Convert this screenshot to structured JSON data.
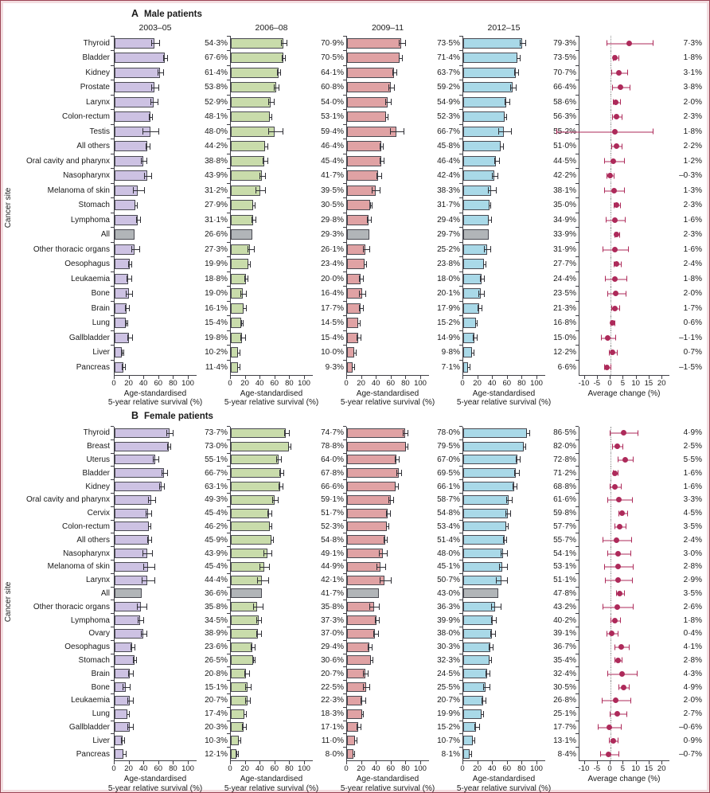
{
  "figure": {
    "ylabel": "Cancer site",
    "frame_outer_color": "#9c4455",
    "frame_inner_color": "#f3dde0",
    "colors": {
      "periods": [
        "#cdc2e3",
        "#c9dcab",
        "#e0a2a4",
        "#a9d9e8"
      ],
      "all_bar": "#b1b5b8",
      "bar_border": "#4a4a52",
      "error_bar": "#303036",
      "change_accent": "#ad2a5a",
      "zero_line": "#919191"
    },
    "survival_axis": {
      "min": 0,
      "max": 100,
      "ticks": [
        0,
        20,
        40,
        60,
        80,
        100
      ],
      "label_line1": "Age-standardised",
      "label_line2": "5-year relative survival (%)"
    },
    "change_axis": {
      "min": -10,
      "max": 20,
      "ticks": [
        -10,
        -5,
        0,
        5,
        10,
        15,
        20
      ],
      "label": "Average change (%)"
    }
  },
  "chart_data": [
    {
      "type": "bar",
      "panel_letter": "A",
      "title": "Male patients",
      "show_period_headers": true,
      "periods": [
        "2003–05",
        "2006–08",
        "2009–11",
        "2012–15"
      ],
      "categories": [
        "Thyroid",
        "Bladder",
        "Kidney",
        "Prostate",
        "Larynx",
        "Colon-rectum",
        "Testis",
        "All others",
        "Oral cavity and pharynx",
        "Nasopharynx",
        "Melanoma of skin",
        "Stomach",
        "Lymphoma",
        "All",
        "Other thoracic organs",
        "Oesophagus",
        "Leukaemia",
        "Bone",
        "Brain",
        "Lung",
        "Gallbladder",
        "Liver",
        "Pancreas"
      ],
      "all_index": 13,
      "series": [
        {
          "name": "2003–05",
          "values": [
            54.3,
            67.6,
            61.4,
            53.8,
            52.9,
            48.1,
            48.0,
            44.2,
            38.8,
            43.9,
            31.2,
            27.9,
            31.1,
            26.6,
            27.3,
            19.9,
            18.8,
            19.0,
            16.1,
            15.4,
            19.8,
            10.2,
            11.4
          ],
          "errors": [
            5,
            2,
            3,
            4,
            4,
            1.5,
            10,
            2,
            3,
            4,
            7,
            1,
            2.5,
            0,
            5,
            1.5,
            2.5,
            4,
            2.5,
            0.8,
            2.5,
            1,
            1.5
          ]
        },
        {
          "name": "2006–08",
          "values": [
            70.9,
            70.5,
            64.1,
            60.8,
            54.0,
            53.1,
            59.4,
            46.4,
            45.4,
            41.7,
            39.5,
            30.5,
            29.8,
            29.3,
            26.1,
            23.4,
            20.0,
            16.4,
            17.7,
            14.5,
            15.4,
            10.0,
            9.3
          ],
          "errors": [
            3,
            1.5,
            2,
            3,
            3,
            1,
            9,
            1.5,
            2.5,
            3.5,
            6,
            1,
            2,
            0,
            4,
            1,
            2,
            3.5,
            2,
            0.8,
            2.5,
            1,
            1
          ]
        },
        {
          "name": "2009–11",
          "values": [
            73.5,
            71.4,
            63.7,
            59.2,
            54.9,
            52.3,
            66.7,
            45.8,
            46.4,
            42.4,
            38.3,
            31.7,
            29.4,
            29.7,
            25.2,
            23.8,
            18.0,
            20.1,
            17.9,
            15.2,
            14.9,
            9.8,
            7.1
          ],
          "errors": [
            3.5,
            1.5,
            2,
            3,
            3,
            1,
            9,
            1.5,
            2.5,
            3,
            5,
            1,
            2,
            0,
            4,
            1,
            2,
            3.5,
            2,
            0.8,
            2.5,
            1,
            1
          ]
        },
        {
          "name": "2012–15",
          "values": [
            79.3,
            73.5,
            70.7,
            66.4,
            58.6,
            56.3,
            55.2,
            51.0,
            44.5,
            42.2,
            38.1,
            35.0,
            34.9,
            33.9,
            31.9,
            27.7,
            24.4,
            23.5,
            21.3,
            16.8,
            15.0,
            12.2,
            6.6
          ],
          "errors": [
            3,
            1.5,
            2,
            3,
            3,
            1,
            8,
            1.5,
            2.5,
            3,
            5,
            1,
            2,
            0,
            4,
            1,
            2,
            3,
            2,
            0.8,
            2,
            1,
            1
          ]
        }
      ],
      "change": {
        "label": "Average change (%)",
        "values": [
          7.3,
          1.8,
          3.1,
          3.8,
          2.0,
          2.3,
          1.8,
          2.2,
          1.2,
          -0.3,
          1.3,
          2.3,
          1.6,
          2.3,
          1.6,
          2.4,
          1.8,
          2.0,
          1.7,
          0.6,
          -1.1,
          0.7,
          -1.5
        ],
        "ci_lo": [
          -1.5,
          1.0,
          0.2,
          0.6,
          0.8,
          0.6,
          -21.0,
          0.4,
          -2.4,
          -1.6,
          -2.4,
          1.3,
          -1.9,
          1.5,
          -3.1,
          1.1,
          -2.1,
          -1.4,
          0.4,
          -0.1,
          -3.6,
          -0.6,
          -2.6
        ],
        "ci_hi": [
          16.0,
          2.6,
          6.0,
          7.0,
          3.2,
          4.0,
          16.0,
          4.0,
          4.8,
          1.0,
          5.0,
          3.3,
          5.1,
          3.1,
          6.3,
          3.7,
          5.7,
          5.4,
          3.0,
          1.3,
          1.4,
          2.0,
          -0.4
        ]
      }
    },
    {
      "type": "bar",
      "panel_letter": "B",
      "title": "Female patients",
      "show_period_headers": false,
      "periods": [
        "2003–05",
        "2006–08",
        "2009–11",
        "2012–15"
      ],
      "categories": [
        "Thyroid",
        "Breast",
        "Uterus",
        "Bladder",
        "Kidney",
        "Oral cavity and pharynx",
        "Cervix",
        "Colon-rectum",
        "All others",
        "Nasopharynx",
        "Melanoma of skin",
        "Larynx",
        "All",
        "Other thoracic organs",
        "Lymphoma",
        "Ovary",
        "Oesophagus",
        "Stomach",
        "Brain",
        "Bone",
        "Leukaemia",
        "Lung",
        "Gallbladder",
        "Liver",
        "Pancreas"
      ],
      "all_index": 12,
      "series": [
        {
          "name": "2003–05",
          "values": [
            73.7,
            73.0,
            55.1,
            66.7,
            63.1,
            49.3,
            45.4,
            46.2,
            45.9,
            43.9,
            45.4,
            44.4,
            36.6,
            35.8,
            34.5,
            38.9,
            23.6,
            26.5,
            20.8,
            15.1,
            20.7,
            17.4,
            20.3,
            10.3,
            12.1
          ],
          "errors": [
            4,
            1.5,
            3,
            3,
            2.5,
            4,
            3,
            1.5,
            2,
            6,
            7,
            8,
            0,
            6,
            3,
            3,
            2,
            1.5,
            3,
            4,
            3,
            1,
            3,
            1.5,
            1.5
          ]
        },
        {
          "name": "2006–08",
          "values": [
            74.7,
            78.8,
            64.0,
            67.8,
            66.6,
            59.1,
            51.7,
            52.3,
            54.8,
            49.1,
            44.9,
            42.1,
            41.7,
            35.8,
            37.3,
            37.0,
            29.4,
            30.6,
            20.7,
            22.5,
            22.3,
            18.3,
            17.1,
            11.0,
            8.0
          ],
          "errors": [
            3,
            1,
            2.5,
            2.5,
            2,
            3,
            2.5,
            1,
            1.5,
            5,
            6,
            7,
            0,
            6,
            2.5,
            2.5,
            2,
            1,
            2.5,
            3.5,
            2.5,
            1,
            2.5,
            1,
            1
          ]
        },
        {
          "name": "2009–11",
          "values": [
            78.0,
            79.5,
            67.0,
            69.5,
            66.1,
            58.7,
            54.8,
            53.4,
            51.4,
            48.0,
            45.1,
            50.7,
            43.0,
            36.3,
            39.9,
            38.0,
            30.3,
            32.3,
            24.5,
            25.5,
            20.7,
            19.9,
            15.2,
            10.7,
            8.1
          ],
          "errors": [
            3,
            1,
            2,
            2.5,
            2,
            3,
            2.5,
            1,
            1.5,
            5,
            5,
            7,
            0,
            6,
            2.5,
            2.5,
            2,
            1,
            2.5,
            3.5,
            2.5,
            1,
            2.5,
            1,
            1
          ]
        },
        {
          "name": "2012–15",
          "values": [
            86.5,
            82.0,
            72.8,
            71.2,
            68.8,
            61.6,
            59.8,
            57.7,
            55.7,
            54.1,
            53.1,
            51.1,
            47.8,
            43.2,
            40.2,
            39.1,
            36.7,
            35.4,
            32.4,
            30.5,
            26.8,
            25.1,
            17.7,
            13.1,
            8.4
          ],
          "errors": [
            2,
            1,
            2,
            2.5,
            2,
            3,
            2.5,
            1,
            1.5,
            4,
            5,
            7,
            0,
            6,
            2.5,
            2.5,
            2,
            1,
            2.5,
            3.5,
            2.5,
            1,
            2.5,
            1,
            1
          ]
        }
      ],
      "change": {
        "label": "Average change (%)",
        "values": [
          4.9,
          2.5,
          5.5,
          1.6,
          1.6,
          3.3,
          4.5,
          3.5,
          2.4,
          3.0,
          2.8,
          2.9,
          3.5,
          2.6,
          1.8,
          0.4,
          4.1,
          2.8,
          4.3,
          4.9,
          2.0,
          2.7,
          -0.6,
          0.9,
          -0.7
        ],
        "ci_lo": [
          -0.3,
          0.6,
          2.6,
          0.9,
          -0.4,
          -1.4,
          3.0,
          1.6,
          -3.0,
          -1.2,
          -2.6,
          -2.2,
          2.1,
          -3.0,
          0.1,
          -1.6,
          1.4,
          1.6,
          -1.2,
          3.1,
          -3.4,
          -0.4,
          -4.8,
          -0.7,
          -4.0
        ],
        "ci_hi": [
          10.1,
          4.4,
          8.4,
          2.3,
          3.6,
          8.0,
          6.0,
          5.4,
          7.8,
          7.2,
          8.2,
          8.0,
          4.9,
          8.2,
          3.5,
          2.4,
          6.8,
          4.0,
          9.8,
          6.7,
          7.4,
          5.8,
          3.6,
          2.5,
          2.6
        ]
      }
    }
  ]
}
